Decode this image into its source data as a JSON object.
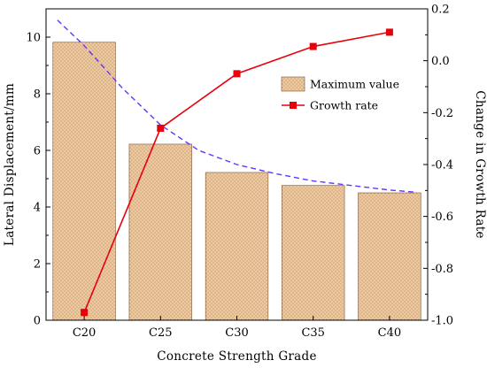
{
  "chart_data": {
    "type": "bar",
    "xlabel": "Concrete Strength Grade",
    "ylabel": "Lateral Displacement/mm",
    "y2label": "Change in Growth Rate",
    "categories": [
      "C20",
      "C25",
      "C30",
      "C35",
      "C40"
    ],
    "ylim": [
      0,
      11
    ],
    "y_ticks": [
      "0",
      "2",
      "4",
      "6",
      "8",
      "10"
    ],
    "y2lim": [
      -1.0,
      0.2
    ],
    "y2_ticks": [
      "-1.0",
      "-0.8",
      "-0.6",
      "-0.4",
      "-0.2",
      "0.0",
      "0.2"
    ],
    "grid": false,
    "legend_position": "upper-right",
    "series": [
      {
        "name": "Maximum value",
        "type": "bar",
        "axis": "left",
        "values": [
          9.82,
          6.22,
          5.22,
          4.76,
          4.5
        ],
        "color": "#eec9a0",
        "stipple_color": "#9a6b3f"
      },
      {
        "name": "Growth rate",
        "type": "line",
        "axis": "right",
        "marker": "square",
        "values": [
          -0.97,
          -0.26,
          -0.05,
          0.055,
          0.11
        ],
        "color": "#e8000b"
      }
    ],
    "trend_line": {
      "style": "dashed",
      "color": "#6633ff",
      "axis": "left",
      "x": [
        -0.35,
        0,
        0.5,
        1,
        1.5,
        2,
        2.5,
        3,
        3.5,
        4,
        4.35
      ],
      "values": [
        10.6,
        9.7,
        8.2,
        6.9,
        6.0,
        5.5,
        5.18,
        4.92,
        4.76,
        4.6,
        4.52
      ]
    }
  }
}
